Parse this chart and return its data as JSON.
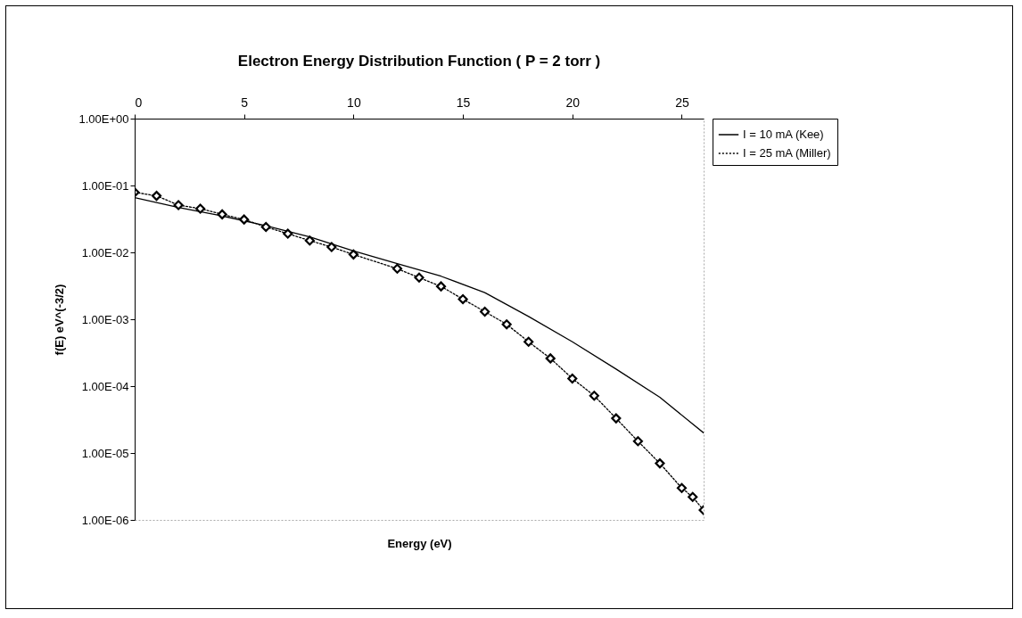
{
  "chart_data": {
    "type": "line",
    "title": "Electron Energy Distribution Function ( P = 2 torr )",
    "xlabel": "Energy (eV)",
    "ylabel": "f(E) eV^(-3/2)",
    "log": "y",
    "grid": false,
    "legend": "right",
    "xlim": [
      0,
      26
    ],
    "xticks": [
      0,
      5,
      10,
      15,
      20,
      25
    ],
    "ylim": [
      1e-06,
      1
    ],
    "yticks": [
      {
        "value": 1,
        "label": "1.00E+00"
      },
      {
        "value": 0.1,
        "label": "1.00E-01"
      },
      {
        "value": 0.01,
        "label": "1.00E-02"
      },
      {
        "value": 0.001,
        "label": "1.00E-03"
      },
      {
        "value": 0.0001,
        "label": "1.00E-04"
      },
      {
        "value": 1e-05,
        "label": "1.00E-05"
      },
      {
        "value": 1e-06,
        "label": "1.00E-06"
      }
    ],
    "series": [
      {
        "name": "I = 10 mA (Kee)",
        "color": "#000000",
        "line_style": "solid",
        "marker": "none",
        "x": [
          0,
          2,
          4,
          6,
          8,
          10,
          12,
          14,
          16,
          18,
          20,
          22,
          24,
          26
        ],
        "values": [
          0.066,
          0.047,
          0.035,
          0.025,
          0.017,
          0.0105,
          0.0068,
          0.0044,
          0.0025,
          0.0011,
          0.00046,
          0.00018,
          6.8e-05,
          2e-05
        ]
      },
      {
        "name": "I = 25 mA (Miller)",
        "color": "#000000",
        "line_style": "dotted",
        "marker": "diamond",
        "x": [
          0,
          1,
          2,
          3,
          4,
          5,
          6,
          7,
          8,
          9,
          10,
          12,
          13,
          14,
          15,
          16,
          17,
          18,
          19,
          20,
          21,
          22,
          23,
          24,
          25,
          25.5,
          26
        ],
        "values": [
          0.079,
          0.07,
          0.051,
          0.045,
          0.037,
          0.031,
          0.024,
          0.019,
          0.015,
          0.012,
          0.0093,
          0.0057,
          0.0042,
          0.0031,
          0.002,
          0.0013,
          0.00084,
          0.00046,
          0.00026,
          0.00013,
          7.2e-05,
          3.3e-05,
          1.5e-05,
          7e-06,
          3e-06,
          2.2e-06,
          1.4e-06
        ]
      }
    ]
  }
}
